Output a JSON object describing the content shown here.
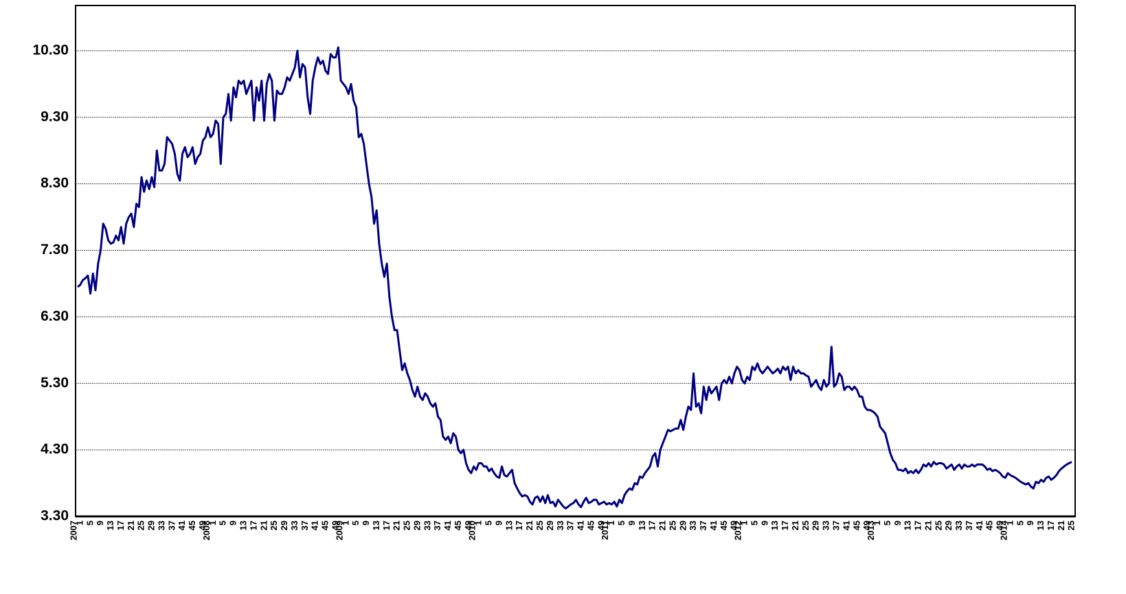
{
  "chart_data": {
    "type": "line",
    "category_groups": [
      {
        "label": "2007",
        "size": 52
      },
      {
        "label": "2008",
        "size": 52
      },
      {
        "label": "2009",
        "size": 52
      },
      {
        "label": "2010",
        "size": 52
      },
      {
        "label": "2011",
        "size": 52
      },
      {
        "label": "2012",
        "size": 52
      },
      {
        "label": "2013",
        "size": 52
      },
      {
        "label": "2014",
        "size": 26
      }
    ],
    "categories": [
      "1",
      null,
      null,
      null,
      "5",
      null,
      null,
      null,
      "9",
      null,
      null,
      null,
      "13",
      null,
      null,
      null,
      "17",
      null,
      null,
      null,
      "21",
      null,
      null,
      null,
      "25",
      null,
      null,
      null,
      "29",
      null,
      null,
      null,
      "33",
      null,
      null,
      null,
      "37",
      null,
      null,
      null,
      "41",
      null,
      null,
      null,
      "45",
      null,
      null,
      null,
      "49",
      null,
      null,
      null,
      "1",
      null,
      null,
      null,
      "5",
      null,
      null,
      null,
      "9",
      null,
      null,
      null,
      "13",
      null,
      null,
      null,
      "17",
      null,
      null,
      null,
      "21",
      null,
      null,
      null,
      "25",
      null,
      null,
      null,
      "29",
      null,
      null,
      null,
      "33",
      null,
      null,
      null,
      "37",
      null,
      null,
      null,
      "41",
      null,
      null,
      null,
      "45",
      null,
      null,
      null,
      "49",
      null,
      null,
      null,
      "1",
      null,
      null,
      null,
      "5",
      null,
      null,
      null,
      "9",
      null,
      null,
      null,
      "13",
      null,
      null,
      null,
      "17",
      null,
      null,
      null,
      "21",
      null,
      null,
      null,
      "25",
      null,
      null,
      null,
      "29",
      null,
      null,
      null,
      "33",
      null,
      null,
      null,
      "37",
      null,
      null,
      null,
      "41",
      null,
      null,
      null,
      "45",
      null,
      null,
      null,
      "49",
      null,
      null,
      null,
      "1",
      null,
      null,
      null,
      "5",
      null,
      null,
      null,
      "9",
      null,
      null,
      null,
      "13",
      null,
      null,
      null,
      "17",
      null,
      null,
      null,
      "21",
      null,
      null,
      null,
      "25",
      null,
      null,
      null,
      "29",
      null,
      null,
      null,
      "33",
      null,
      null,
      null,
      "37",
      null,
      null,
      null,
      "41",
      null,
      null,
      null,
      "45",
      null,
      null,
      null,
      "49",
      null,
      null,
      null,
      "1",
      null,
      null,
      null,
      "5",
      null,
      null,
      null,
      "9",
      null,
      null,
      null,
      "13",
      null,
      null,
      null,
      "17",
      null,
      null,
      null,
      "21",
      null,
      null,
      null,
      "25",
      null,
      null,
      null,
      "29",
      null,
      null,
      null,
      "33",
      null,
      null,
      null,
      "37",
      null,
      null,
      null,
      "41",
      null,
      null,
      null,
      "45",
      null,
      null,
      null,
      "49",
      null,
      null,
      null,
      "1",
      null,
      null,
      null,
      "5",
      null,
      null,
      null,
      "9",
      null,
      null,
      null,
      "13",
      null,
      null,
      null,
      "17",
      null,
      null,
      null,
      "21",
      null,
      null,
      null,
      "25",
      null,
      null,
      null,
      "29",
      null,
      null,
      null,
      "33",
      null,
      null,
      null,
      "37",
      null,
      null,
      null,
      "41",
      null,
      null,
      null,
      "45",
      null,
      null,
      null,
      "49",
      null,
      null,
      null,
      "1",
      null,
      null,
      null,
      "5",
      null,
      null,
      null,
      "9",
      null,
      null,
      null,
      "13",
      null,
      null,
      null,
      "17",
      null,
      null,
      null,
      "21",
      null,
      null,
      null,
      "25",
      null,
      null,
      null,
      "29",
      null,
      null,
      null,
      "33",
      null,
      null,
      null,
      "37",
      null,
      null,
      null,
      "41",
      null,
      null,
      null,
      "45",
      null,
      null,
      null,
      "49",
      null,
      null,
      null,
      "1",
      null,
      null,
      null,
      "5",
      null,
      null,
      null,
      "9",
      null,
      null,
      null,
      "13",
      null,
      null,
      null,
      "17",
      null,
      null,
      null,
      "21",
      null,
      null,
      null,
      "25",
      null
    ],
    "values": [
      6.75,
      6.78,
      6.85,
      6.88,
      6.92,
      6.65,
      6.95,
      6.7,
      7.1,
      7.3,
      7.7,
      7.62,
      7.45,
      7.4,
      7.42,
      7.52,
      7.45,
      7.65,
      7.4,
      7.7,
      7.8,
      7.85,
      7.65,
      8.0,
      7.95,
      8.4,
      8.18,
      8.35,
      8.22,
      8.4,
      8.25,
      8.8,
      8.5,
      8.5,
      8.6,
      9.0,
      8.95,
      8.9,
      8.75,
      8.45,
      8.35,
      8.75,
      8.85,
      8.7,
      8.75,
      8.85,
      8.6,
      8.7,
      8.75,
      8.95,
      9.0,
      9.15,
      9.0,
      9.05,
      9.25,
      9.2,
      8.6,
      9.3,
      9.35,
      9.65,
      9.25,
      9.75,
      9.6,
      9.85,
      9.8,
      9.85,
      9.65,
      9.75,
      9.85,
      9.25,
      9.75,
      9.55,
      9.85,
      9.25,
      9.8,
      9.95,
      9.85,
      9.25,
      9.7,
      9.65,
      9.65,
      9.75,
      9.9,
      9.85,
      9.95,
      10.05,
      10.3,
      9.9,
      10.1,
      10.05,
      9.6,
      9.35,
      9.85,
      10.05,
      10.2,
      10.1,
      10.15,
      10.0,
      9.95,
      10.25,
      10.2,
      10.2,
      10.35,
      9.85,
      9.8,
      9.75,
      9.65,
      9.8,
      9.55,
      9.45,
      9.0,
      9.05,
      8.9,
      8.6,
      8.3,
      8.1,
      7.7,
      7.9,
      7.4,
      7.1,
      6.9,
      7.1,
      6.6,
      6.3,
      6.1,
      6.1,
      5.8,
      5.5,
      5.6,
      5.45,
      5.35,
      5.2,
      5.1,
      5.25,
      5.1,
      5.05,
      5.15,
      5.1,
      5.0,
      4.95,
      5.0,
      4.8,
      4.75,
      4.5,
      4.45,
      4.5,
      4.4,
      4.55,
      4.5,
      4.3,
      4.25,
      4.3,
      4.1,
      4.0,
      3.95,
      4.05,
      4.0,
      4.1,
      4.1,
      4.05,
      4.05,
      3.98,
      4.02,
      3.95,
      3.9,
      3.88,
      4.05,
      3.92,
      3.9,
      3.95,
      4.0,
      3.8,
      3.72,
      3.65,
      3.6,
      3.62,
      3.6,
      3.52,
      3.48,
      3.58,
      3.6,
      3.52,
      3.6,
      3.5,
      3.62,
      3.5,
      3.52,
      3.45,
      3.55,
      3.5,
      3.45,
      3.42,
      3.45,
      3.48,
      3.5,
      3.55,
      3.48,
      3.44,
      3.52,
      3.58,
      3.5,
      3.52,
      3.55,
      3.55,
      3.48,
      3.5,
      3.52,
      3.48,
      3.5,
      3.48,
      3.52,
      3.45,
      3.55,
      3.5,
      3.62,
      3.68,
      3.72,
      3.7,
      3.8,
      3.78,
      3.9,
      3.88,
      3.95,
      4.0,
      4.05,
      4.2,
      4.25,
      4.05,
      4.3,
      4.4,
      4.5,
      4.6,
      4.58,
      4.6,
      4.62,
      4.62,
      4.75,
      4.6,
      4.8,
      4.95,
      4.9,
      5.45,
      4.95,
      5.0,
      4.85,
      5.25,
      5.05,
      5.25,
      5.15,
      5.2,
      5.25,
      5.05,
      5.3,
      5.35,
      5.3,
      5.4,
      5.3,
      5.45,
      5.55,
      5.5,
      5.35,
      5.3,
      5.4,
      5.35,
      5.55,
      5.5,
      5.6,
      5.5,
      5.45,
      5.5,
      5.55,
      5.5,
      5.45,
      5.48,
      5.52,
      5.45,
      5.55,
      5.5,
      5.55,
      5.35,
      5.55,
      5.45,
      5.5,
      5.45,
      5.45,
      5.42,
      5.4,
      5.25,
      5.3,
      5.35,
      5.25,
      5.2,
      5.35,
      5.25,
      5.3,
      5.85,
      5.25,
      5.3,
      5.45,
      5.4,
      5.2,
      5.25,
      5.25,
      5.2,
      5.25,
      5.2,
      5.1,
      5.1,
      4.95,
      4.9,
      4.9,
      4.88,
      4.85,
      4.8,
      4.65,
      4.6,
      4.55,
      4.4,
      4.25,
      4.15,
      4.1,
      4.0,
      4.0,
      3.98,
      4.02,
      3.95,
      3.98,
      3.95,
      4.0,
      3.95,
      4.0,
      4.08,
      4.05,
      4.1,
      4.05,
      4.12,
      4.08,
      4.1,
      4.1,
      4.08,
      4.02,
      4.05,
      4.08,
      4.0,
      4.05,
      4.08,
      4.02,
      4.08,
      4.05,
      4.05,
      4.08,
      4.05,
      4.08,
      4.08,
      4.08,
      4.05,
      4.0,
      4.02,
      3.98,
      4.0,
      3.98,
      3.95,
      3.9,
      3.88,
      3.95,
      3.92,
      3.9,
      3.88,
      3.85,
      3.82,
      3.8,
      3.78,
      3.8,
      3.75,
      3.72,
      3.82,
      3.8,
      3.85,
      3.82,
      3.88,
      3.9,
      3.85,
      3.88,
      3.92,
      3.98,
      4.02,
      4.05,
      4.08,
      4.1,
      4.12
    ],
    "color": "#000080",
    "ylim": [
      3.3,
      10.98
    ],
    "yticks": [
      {
        "value": 3.3,
        "label": "3.30"
      },
      {
        "value": 4.3,
        "label": "4.30"
      },
      {
        "value": 5.3,
        "label": "5.30"
      },
      {
        "value": 6.3,
        "label": "6.30"
      },
      {
        "value": 7.3,
        "label": "7.30"
      },
      {
        "value": 8.3,
        "label": "8.30"
      },
      {
        "value": 9.3,
        "label": "9.30"
      },
      {
        "value": 10.3,
        "label": "10.30"
      }
    ],
    "grid": true
  }
}
